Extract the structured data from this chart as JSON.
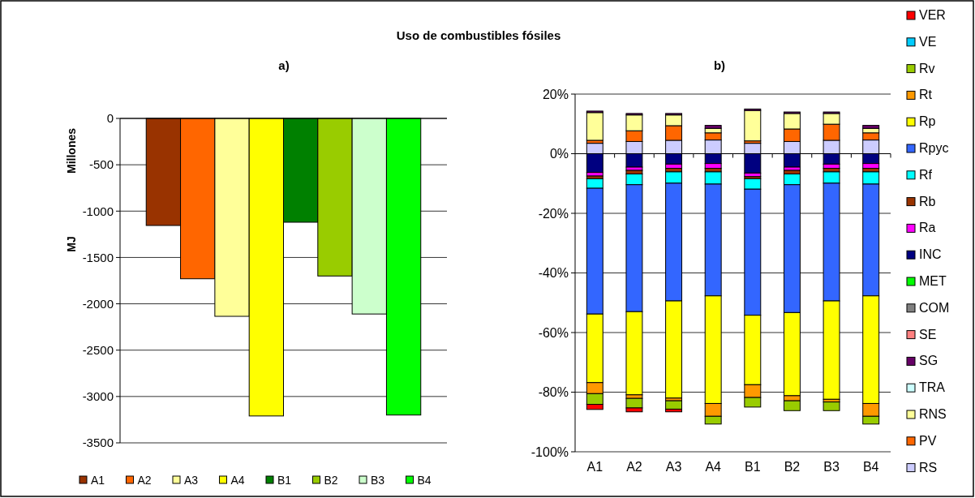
{
  "chart_data": [
    {
      "type": "bar",
      "title": "Uso de combustibles fósiles",
      "subtitle": "a)",
      "ylabel": "MJ",
      "annotations": [
        "Millones"
      ],
      "categories": [
        null
      ],
      "ylim": [
        -3500,
        0
      ],
      "yticks": [
        0,
        -500,
        -1000,
        -1500,
        -2000,
        -2500,
        -3000,
        -3500
      ],
      "grid": "y",
      "legend": "bottom",
      "series": [
        {
          "name": "A1",
          "color": "#993300",
          "values": [
            -1155
          ]
        },
        {
          "name": "A2",
          "color": "#ff6600",
          "values": [
            -1730
          ]
        },
        {
          "name": "A3",
          "color": "#ffff99",
          "values": [
            -2135
          ]
        },
        {
          "name": "A4",
          "color": "#ffff00",
          "values": [
            -3210
          ]
        },
        {
          "name": "B1",
          "color": "#008000",
          "values": [
            -1120
          ]
        },
        {
          "name": "B2",
          "color": "#99cc00",
          "values": [
            -1700
          ]
        },
        {
          "name": "B3",
          "color": "#ccffcc",
          "values": [
            -2110
          ]
        },
        {
          "name": "B4",
          "color": "#00ff00",
          "values": [
            -3200
          ]
        }
      ]
    },
    {
      "type": "bar",
      "title": "b)",
      "stacked": true,
      "categories": [
        "A1",
        "A2",
        "A3",
        "A4",
        "B1",
        "B2",
        "B3",
        "B4"
      ],
      "ylim": [
        -100,
        20
      ],
      "yticks": [
        {
          "value": 20,
          "label": "20%"
        },
        {
          "value": 0,
          "label": "0%"
        },
        {
          "value": -20,
          "label": "-20%"
        },
        {
          "value": -40,
          "label": "-40%"
        },
        {
          "value": -60,
          "label": "-60%"
        },
        {
          "value": -80,
          "label": "-80%"
        },
        {
          "value": -100,
          "label": "-100%"
        }
      ],
      "grid": "y",
      "legend": "right",
      "series": [
        {
          "name": "RS",
          "color": "#ccccff",
          "values": [
            3.5,
            4.1,
            4.5,
            4.6,
            3.5,
            4.1,
            4.5,
            4.6
          ]
        },
        {
          "name": "PV",
          "color": "#ff6600",
          "values": [
            1.0,
            3.6,
            4.9,
            2.4,
            0.8,
            4.2,
            5.4,
            2.4
          ]
        },
        {
          "name": "RNS",
          "color": "#ffff99",
          "values": [
            9.3,
            5.3,
            3.6,
            1.5,
            10.2,
            5.2,
            3.6,
            1.5
          ]
        },
        {
          "name": "TRA",
          "color": "#ccffff",
          "values": [
            null,
            null,
            null,
            null,
            null,
            null,
            null,
            null
          ]
        },
        {
          "name": "SG",
          "color": "#660066",
          "values": [
            0.5,
            0.5,
            0.5,
            1.0,
            0.5,
            0.5,
            0.5,
            1.0
          ]
        },
        {
          "name": "SE",
          "color": "#ff8080",
          "values": [
            null,
            null,
            null,
            null,
            null,
            null,
            null,
            null
          ]
        },
        {
          "name": "COM",
          "color": "#808080",
          "values": [
            null,
            null,
            null,
            null,
            null,
            null,
            null,
            null
          ]
        },
        {
          "name": "MET",
          "color": "#00ff00",
          "values": [
            null,
            null,
            null,
            null,
            null,
            null,
            null,
            null
          ]
        },
        {
          "name": "INC",
          "color": "#000080",
          "values": [
            -6.3,
            -4.5,
            -3.5,
            -3.3,
            -6.5,
            -4.5,
            -3.5,
            -3.3
          ]
        },
        {
          "name": "Ra",
          "color": "#ff00ff",
          "values": [
            -1.2,
            -1.1,
            -1.4,
            -1.6,
            -1.2,
            -1.1,
            -1.4,
            -1.6
          ]
        },
        {
          "name": "Rb",
          "color": "#993300",
          "values": [
            -0.9,
            -1.2,
            -1.2,
            -1.2,
            -0.7,
            -1.2,
            -1.2,
            -1.2
          ]
        },
        {
          "name": "Rf",
          "color": "#00ffff",
          "values": [
            -3.2,
            -3.6,
            -3.8,
            -4.1,
            -3.5,
            -3.6,
            -3.8,
            -4.1
          ]
        },
        {
          "name": "Rpyc",
          "color": "#3366ff",
          "values": [
            -42.2,
            -42.6,
            -39.5,
            -37.5,
            -42.3,
            -42.9,
            -39.5,
            -37.5
          ]
        },
        {
          "name": "Rp",
          "color": "#ffff00",
          "values": [
            -23.0,
            -27.9,
            -32.6,
            -36.1,
            -23.3,
            -27.9,
            -33.0,
            -36.1
          ]
        },
        {
          "name": "Rt",
          "color": "#ff9900",
          "values": [
            -3.7,
            -1.2,
            -0.9,
            -4.3,
            -4.3,
            -1.7,
            -0.9,
            -4.3
          ]
        },
        {
          "name": "Rv",
          "color": "#99cc00",
          "values": [
            -3.6,
            -3.2,
            -2.8,
            -2.6,
            -3.2,
            -3.3,
            -2.9,
            -2.6
          ]
        },
        {
          "name": "VE",
          "color": "#00ccff",
          "values": [
            null,
            null,
            null,
            null,
            null,
            null,
            null,
            null
          ]
        },
        {
          "name": "VER",
          "color": "#ff0000",
          "values": [
            -1.7,
            -1.3,
            -0.9,
            null,
            null,
            null,
            null,
            null
          ]
        }
      ]
    }
  ]
}
